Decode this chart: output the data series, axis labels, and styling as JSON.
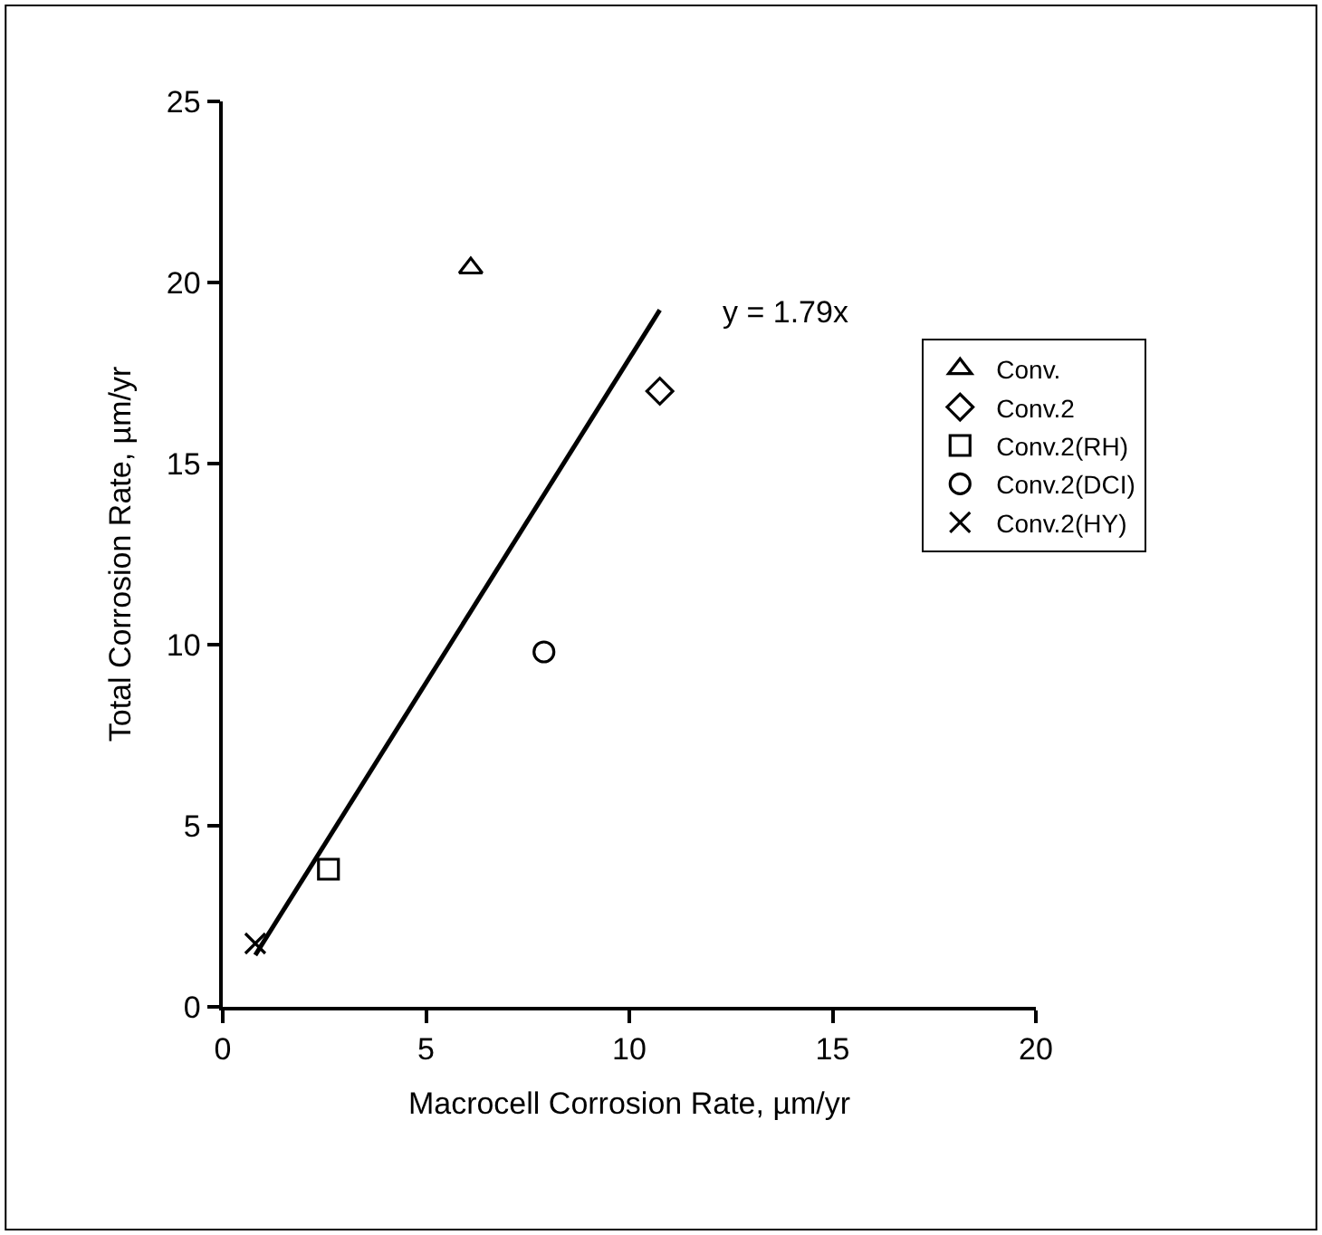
{
  "chart_data": {
    "type": "scatter",
    "xlabel": "Macrocell Corrosion Rate, µm/yr",
    "ylabel": "Total Corrosion Rate, µm/yr",
    "xlim": [
      0,
      20
    ],
    "xticks": [
      0,
      5,
      10,
      15,
      20
    ],
    "ylim": [
      0,
      25
    ],
    "yticks": [
      0,
      5,
      10,
      15,
      20,
      25
    ],
    "grid": false,
    "legend": "right",
    "series": [
      {
        "name": "Conv.",
        "color": "#000000",
        "marker": "triangle",
        "x": [
          6.1
        ],
        "values": [
          20.4
        ]
      },
      {
        "name": "Conv.2",
        "color": "#000000",
        "marker": "diamond",
        "x": [
          10.75
        ],
        "values": [
          17.0
        ]
      },
      {
        "name": "Conv.2(RH)",
        "color": "#000000",
        "marker": "square",
        "x": [
          2.6
        ],
        "values": [
          3.8
        ]
      },
      {
        "name": "Conv.2(DCI)",
        "color": "#000000",
        "marker": "circle",
        "x": [
          7.9
        ],
        "values": [
          9.8
        ]
      },
      {
        "name": "Conv.2(HY)",
        "color": "#000000",
        "marker": "cross",
        "x": [
          0.8
        ],
        "values": [
          1.75
        ]
      },
      {
        "type": "line",
        "color": "#000000",
        "marker": "none",
        "line_style": "solid",
        "x": [
          0.8,
          10.75
        ],
        "values": [
          1.43,
          19.24
        ]
      }
    ],
    "annotations": [
      "y = 1.79x"
    ]
  }
}
